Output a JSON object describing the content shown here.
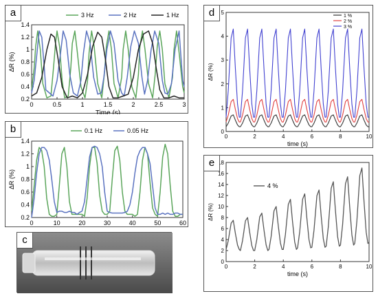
{
  "panels": {
    "a": {
      "label": "a"
    },
    "b": {
      "label": "b"
    },
    "c": {
      "label": "c"
    },
    "d": {
      "label": "d"
    },
    "e": {
      "label": "e"
    }
  },
  "chart_data": [
    {
      "id": "a",
      "type": "line",
      "xlabel": "Time (s)",
      "ylabel": "ΔR (%)",
      "xlim": [
        0,
        3
      ],
      "ylim": [
        0.2,
        1.4
      ],
      "xticks": [
        "0",
        "0.5",
        "1",
        "1.5",
        "2",
        "2.5",
        "3"
      ],
      "yticks": [
        "0.2",
        "0.4",
        "0.6",
        "0.8",
        "1",
        "1.2",
        "1.4"
      ],
      "legend": "top",
      "series": [
        {
          "name": "3 Hz",
          "color": "#5aa55a",
          "x": [
            0,
            0.05,
            0.08,
            0.12,
            0.17,
            0.22,
            0.3,
            0.38,
            0.43,
            0.47,
            0.5,
            0.55,
            0.6,
            0.65,
            0.72,
            0.77,
            0.8,
            0.85,
            0.9,
            0.97,
            1.05,
            1.1,
            1.13,
            1.18,
            1.23,
            1.3,
            1.38,
            1.43,
            1.47,
            1.52,
            1.57,
            1.62,
            1.7,
            1.77,
            1.8,
            1.85,
            1.9,
            1.97,
            2.05,
            2.1,
            2.13,
            2.18,
            2.23,
            2.3,
            2.38,
            2.43,
            2.47,
            2.52,
            2.57,
            2.62,
            2.7,
            2.77,
            2.8,
            2.85,
            2.9,
            2.97,
            3.0
          ],
          "y": [
            0.35,
            0.7,
            1.05,
            1.3,
            1.0,
            0.45,
            0.22,
            0.25,
            0.7,
            1.1,
            1.3,
            1.05,
            0.5,
            0.22,
            0.25,
            0.7,
            1.1,
            1.3,
            0.95,
            0.4,
            0.22,
            0.5,
            0.95,
            1.3,
            1.05,
            0.45,
            0.22,
            0.6,
            1.05,
            1.3,
            1.0,
            0.45,
            0.22,
            0.55,
            1.0,
            1.3,
            1.0,
            0.4,
            0.22,
            0.6,
            1.05,
            1.3,
            1.0,
            0.45,
            0.22,
            0.6,
            1.05,
            1.3,
            1.0,
            0.45,
            0.22,
            0.55,
            1.0,
            1.3,
            0.95,
            0.4,
            0.3
          ]
        },
        {
          "name": "2 Hz",
          "color": "#5a72c0",
          "x": [
            0,
            0.05,
            0.1,
            0.15,
            0.2,
            0.25,
            0.28,
            0.35,
            0.42,
            0.5,
            0.57,
            0.62,
            0.68,
            0.75,
            0.82,
            0.9,
            0.97,
            1.02,
            1.08,
            1.15,
            1.22,
            1.3,
            1.37,
            1.42,
            1.48,
            1.55,
            1.62,
            1.7,
            1.77,
            1.82,
            1.88,
            1.95,
            2.02,
            2.1,
            2.17,
            2.22,
            2.28,
            2.35,
            2.42,
            2.5,
            2.57,
            2.62,
            2.68,
            2.75,
            2.82,
            2.9,
            2.97,
            3.0
          ],
          "y": [
            0.3,
            0.5,
            0.9,
            1.3,
            1.2,
            0.7,
            0.35,
            0.3,
            0.25,
            0.5,
            0.95,
            1.3,
            1.15,
            0.6,
            0.3,
            0.25,
            0.5,
            0.95,
            1.3,
            1.1,
            0.55,
            0.28,
            0.3,
            0.55,
            1.0,
            1.3,
            1.1,
            0.5,
            0.3,
            0.25,
            0.55,
            1.05,
            1.3,
            1.1,
            0.55,
            0.28,
            0.5,
            1.0,
            1.3,
            1.1,
            0.5,
            0.3,
            0.28,
            0.45,
            1.0,
            1.3,
            0.5,
            0.4
          ]
        },
        {
          "name": "1 Hz",
          "color": "#222222",
          "x": [
            0,
            0.1,
            0.2,
            0.3,
            0.38,
            0.45,
            0.52,
            0.6,
            0.7,
            0.8,
            0.9,
            1.0,
            1.1,
            1.2,
            1.3,
            1.38,
            1.45,
            1.52,
            1.6,
            1.7,
            1.8,
            1.9,
            2.0,
            2.1,
            2.2,
            2.3,
            2.38,
            2.45,
            2.52,
            2.6,
            2.7,
            2.8,
            2.9,
            3.0
          ],
          "y": [
            0.25,
            0.3,
            0.55,
            1.0,
            1.25,
            1.2,
            0.85,
            0.4,
            0.22,
            0.25,
            0.22,
            0.3,
            0.6,
            1.05,
            1.28,
            1.2,
            0.85,
            0.4,
            0.22,
            0.22,
            0.25,
            0.28,
            0.55,
            1.0,
            1.25,
            1.3,
            1.1,
            0.7,
            0.35,
            0.22,
            0.22,
            0.25,
            0.22,
            0.22
          ]
        }
      ]
    },
    {
      "id": "b",
      "type": "line",
      "xlabel": "",
      "ylabel": "ΔR (%)",
      "xlim": [
        0,
        60
      ],
      "ylim": [
        0.2,
        1.4
      ],
      "xticks": [
        "0",
        "10",
        "20",
        "30",
        "40",
        "50",
        "60"
      ],
      "yticks": [
        "0.2",
        "0.4",
        "0.6",
        "0.8",
        "1",
        "1.2",
        "1.4"
      ],
      "legend": "top",
      "series": [
        {
          "name": "0.1 Hz",
          "color": "#5aa55a",
          "x": [
            0,
            1,
            2,
            3,
            4,
            5,
            6,
            7,
            8,
            9,
            10,
            11,
            12,
            13,
            14,
            15,
            16,
            17,
            18,
            19,
            20,
            21,
            22,
            23,
            24,
            25,
            26,
            27,
            28,
            29,
            30,
            31,
            32,
            33,
            34,
            35,
            36,
            37,
            38,
            39,
            40,
            41,
            42,
            43,
            44,
            45,
            46,
            47,
            48,
            49,
            50,
            51,
            52,
            53,
            54,
            55,
            56,
            57,
            58,
            59,
            60
          ],
          "y": [
            0.3,
            0.7,
            1.1,
            1.3,
            1.25,
            1.0,
            0.5,
            0.25,
            0.22,
            0.22,
            0.25,
            0.7,
            1.2,
            1.3,
            1.0,
            0.45,
            0.25,
            0.25,
            0.25,
            0.25,
            0.25,
            0.22,
            0.5,
            1.0,
            1.3,
            1.3,
            1.05,
            0.55,
            0.3,
            0.25,
            0.25,
            0.3,
            0.8,
            1.25,
            1.32,
            1.1,
            0.6,
            0.3,
            0.25,
            0.25,
            0.25,
            0.22,
            0.25,
            0.6,
            1.1,
            1.3,
            1.2,
            0.75,
            0.35,
            0.25,
            0.22,
            0.6,
            1.15,
            1.35,
            1.2,
            0.7,
            0.3,
            0.22,
            0.22,
            0.25,
            0.25
          ]
        },
        {
          "name": "0.05 Hz",
          "color": "#5a72c0",
          "x": [
            0,
            1,
            2,
            3,
            4,
            5,
            6,
            7,
            8,
            9,
            10,
            11,
            12,
            13,
            14,
            15,
            16,
            17,
            18,
            19,
            20,
            21,
            22,
            23,
            24,
            25,
            26,
            27,
            28,
            29,
            30,
            31,
            32,
            33,
            34,
            35,
            36,
            37,
            38,
            39,
            40,
            41,
            42,
            43,
            44,
            45,
            46,
            47,
            48,
            49,
            50,
            51,
            52,
            53,
            54,
            55,
            56,
            57,
            58,
            59,
            60
          ],
          "y": [
            0.2,
            0.5,
            0.9,
            1.2,
            1.3,
            1.3,
            1.25,
            1.1,
            0.8,
            0.45,
            0.28,
            0.3,
            0.3,
            0.28,
            0.28,
            0.3,
            0.28,
            0.28,
            0.25,
            0.28,
            0.3,
            0.45,
            0.8,
            1.15,
            1.3,
            1.32,
            1.3,
            1.2,
            1.0,
            0.6,
            0.3,
            0.28,
            0.27,
            0.27,
            0.27,
            0.27,
            0.27,
            0.28,
            0.3,
            0.4,
            0.6,
            0.9,
            1.15,
            1.25,
            1.3,
            1.3,
            1.2,
            1.05,
            0.7,
            0.35,
            0.25,
            0.25,
            0.27,
            0.25,
            0.27,
            0.25,
            0.25,
            0.27,
            0.27,
            0.25,
            0.25
          ]
        }
      ]
    },
    {
      "id": "d",
      "type": "line",
      "xlabel": "time (s)",
      "ylabel": "ΔR (%)",
      "xlim": [
        0,
        10
      ],
      "ylim": [
        0,
        5
      ],
      "xticks": [
        "0",
        "2",
        "4",
        "6",
        "8",
        "10"
      ],
      "yticks": [
        "0",
        "1",
        "2",
        "3",
        "4",
        "5"
      ],
      "legend": "top-right",
      "cycles": 10,
      "series": [
        {
          "name": "1 %",
          "color": "#333333",
          "base": 0.2,
          "peak": 0.7
        },
        {
          "name": "2 %",
          "color": "#e04040",
          "base": 0.4,
          "peak": 1.35
        },
        {
          "name": "3 %",
          "color": "#4040d0",
          "base": 0.6,
          "peak": 4.3
        }
      ]
    },
    {
      "id": "e",
      "type": "line",
      "xlabel": "time (s)",
      "ylabel": "ΔR (%)",
      "xlim": [
        0,
        10
      ],
      "ylim": [
        0,
        18
      ],
      "xticks": [
        "0",
        "2",
        "4",
        "6",
        "8",
        "10"
      ],
      "yticks": [
        "0",
        "2",
        "4",
        "6",
        "8",
        "10",
        "12",
        "14",
        "16",
        "18"
      ],
      "legend": "top-left",
      "series": [
        {
          "name": "4 %",
          "color": "#555555",
          "bases": [
            2.2,
            2.0,
            2.0,
            2.2,
            2.2,
            2.5,
            2.6,
            2.8,
            3.0,
            3.3
          ],
          "peaks": [
            7.5,
            8.0,
            8.8,
            10.0,
            11.3,
            12.3,
            13.0,
            14.5,
            15.4,
            17.0
          ],
          "end": 3.5
        }
      ]
    }
  ],
  "photo": {
    "description": ""
  }
}
